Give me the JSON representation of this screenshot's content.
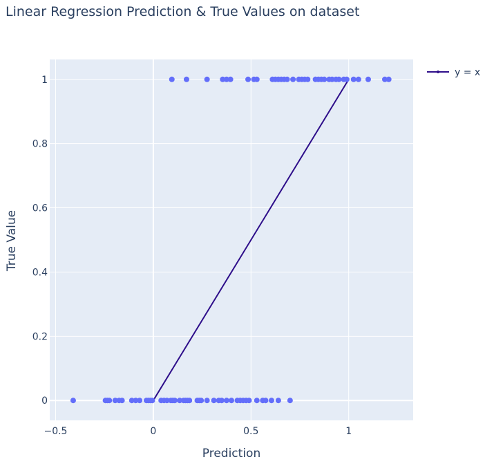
{
  "chart_data": {
    "type": "scatter",
    "title": "Linear Regression Prediction & True Values on dataset",
    "xlabel": "Prediction",
    "ylabel": "True Value",
    "xlim": [
      -0.53,
      1.33
    ],
    "ylim": [
      -0.062,
      1.062
    ],
    "x_ticks": [
      -0.5,
      0,
      0.5,
      1
    ],
    "x_tick_labels": [
      "−0.5",
      "0",
      "0.5",
      "1"
    ],
    "y_ticks": [
      0,
      0.2,
      0.4,
      0.6,
      0.8,
      1
    ],
    "y_tick_labels": [
      "0",
      "0.2",
      "0.4",
      "0.6",
      "0.8",
      "1"
    ],
    "grid": true,
    "legend_position": "top-right",
    "plot_bg": "#e5ecf6",
    "series": [
      {
        "mode": "markers",
        "color": "#636efa",
        "points": [
          [
            -0.41,
            0
          ],
          [
            -0.245,
            0
          ],
          [
            -0.235,
            0
          ],
          [
            -0.225,
            0
          ],
          [
            -0.195,
            0
          ],
          [
            -0.175,
            0
          ],
          [
            -0.16,
            0
          ],
          [
            -0.11,
            0
          ],
          [
            -0.09,
            0
          ],
          [
            -0.07,
            0
          ],
          [
            -0.035,
            0
          ],
          [
            -0.025,
            0
          ],
          [
            -0.015,
            0
          ],
          [
            -0.005,
            0
          ],
          [
            0.04,
            0
          ],
          [
            0.055,
            0
          ],
          [
            0.07,
            0
          ],
          [
            0.09,
            0
          ],
          [
            0.1,
            0
          ],
          [
            0.11,
            0
          ],
          [
            0.135,
            0
          ],
          [
            0.155,
            0
          ],
          [
            0.165,
            0
          ],
          [
            0.175,
            0
          ],
          [
            0.185,
            0
          ],
          [
            0.225,
            0
          ],
          [
            0.235,
            0
          ],
          [
            0.245,
            0
          ],
          [
            0.275,
            0
          ],
          [
            0.31,
            0
          ],
          [
            0.335,
            0
          ],
          [
            0.35,
            0
          ],
          [
            0.375,
            0
          ],
          [
            0.4,
            0
          ],
          [
            0.43,
            0
          ],
          [
            0.445,
            0
          ],
          [
            0.46,
            0
          ],
          [
            0.475,
            0
          ],
          [
            0.49,
            0
          ],
          [
            0.53,
            0
          ],
          [
            0.56,
            0
          ],
          [
            0.575,
            0
          ],
          [
            0.605,
            0
          ],
          [
            0.64,
            0
          ],
          [
            0.7,
            0
          ],
          [
            0.095,
            1
          ],
          [
            0.17,
            1
          ],
          [
            0.275,
            1
          ],
          [
            0.355,
            1
          ],
          [
            0.375,
            1
          ],
          [
            0.395,
            1
          ],
          [
            0.485,
            1
          ],
          [
            0.515,
            1
          ],
          [
            0.53,
            1
          ],
          [
            0.61,
            1
          ],
          [
            0.625,
            1
          ],
          [
            0.64,
            1
          ],
          [
            0.655,
            1
          ],
          [
            0.67,
            1
          ],
          [
            0.685,
            1
          ],
          [
            0.715,
            1
          ],
          [
            0.745,
            1
          ],
          [
            0.76,
            1
          ],
          [
            0.775,
            1
          ],
          [
            0.79,
            1
          ],
          [
            0.83,
            1
          ],
          [
            0.845,
            1
          ],
          [
            0.86,
            1
          ],
          [
            0.875,
            1
          ],
          [
            0.9,
            1
          ],
          [
            0.915,
            1
          ],
          [
            0.935,
            1
          ],
          [
            0.95,
            1
          ],
          [
            0.975,
            1
          ],
          [
            0.99,
            1
          ],
          [
            1.025,
            1
          ],
          [
            1.05,
            1
          ],
          [
            1.1,
            1
          ],
          [
            1.185,
            1
          ],
          [
            1.205,
            1
          ]
        ]
      },
      {
        "name": "y = x",
        "mode": "lines",
        "color": "#2e0e8a",
        "x": [
          0,
          1
        ],
        "y": [
          0,
          1
        ]
      }
    ]
  }
}
